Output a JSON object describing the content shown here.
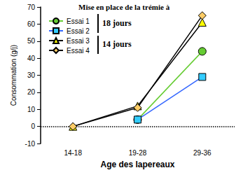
{
  "chart_data": {
    "type": "line",
    "x_label": "Age des lapereaux",
    "y_label": "Consommation (g/j)",
    "categories": [
      "14-18",
      "19-28",
      "29-36"
    ],
    "series": [
      {
        "name": "Essai 1",
        "color": "#66cc33",
        "marker": "circle",
        "values": [
          null,
          4,
          44
        ]
      },
      {
        "name": "Essai 2",
        "color": "#33ccff",
        "marker": "square",
        "values": [
          null,
          4,
          29
        ]
      },
      {
        "name": "Essai 3",
        "color": "#ffff00",
        "marker": "triangle",
        "values": [
          0,
          12,
          61
        ]
      },
      {
        "name": "Essai 4",
        "color": "#ffcc66",
        "marker": "diamond",
        "values": [
          0,
          11,
          65
        ]
      }
    ],
    "ylim": [
      -10,
      70
    ],
    "yticks": [
      -10,
      0,
      10,
      20,
      30,
      40,
      50,
      60,
      70
    ],
    "grid": false,
    "legend": "upper left",
    "annotations": [
      "Mise en place de la trémie à",
      "18 jours",
      "14 jours"
    ],
    "reference_line": {
      "y": 0,
      "line_style": "dotted"
    }
  }
}
